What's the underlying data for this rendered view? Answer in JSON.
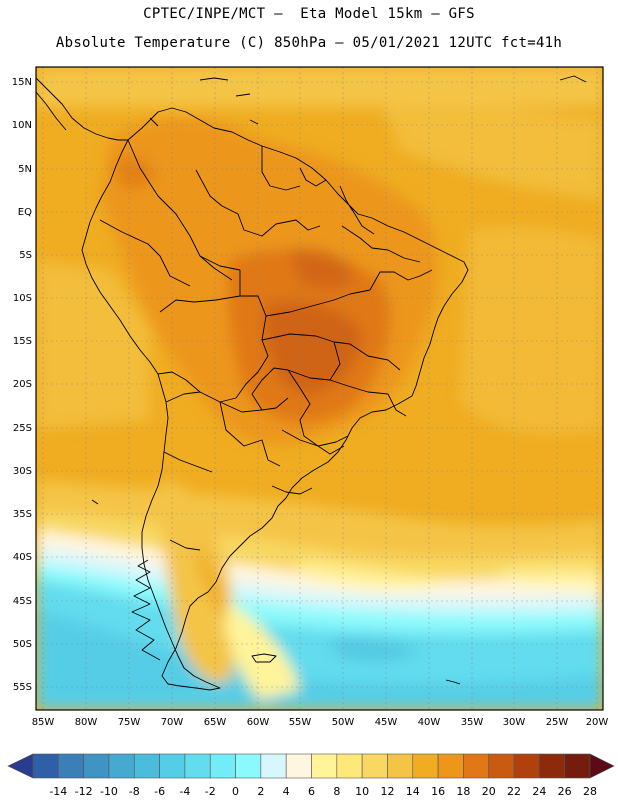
{
  "header": {
    "line1": "CPTEC/INPE/MCT –  Eta Model 15km – GFS",
    "line2": "Absolute Temperature (C) 850hPa – 05/01/2021 12UTC fct=41h"
  },
  "map": {
    "region": "South America",
    "lat_labels": [
      "15N",
      "10N",
      "5N",
      "EQ",
      "5S",
      "10S",
      "15S",
      "20S",
      "25S",
      "30S",
      "35S",
      "40S",
      "45S",
      "50S",
      "55S"
    ],
    "lon_labels": [
      "85W",
      "80W",
      "75W",
      "70W",
      "65W",
      "60W",
      "55W",
      "50W",
      "45W",
      "40W",
      "35W",
      "30W",
      "25W",
      "20W"
    ]
  },
  "colorbar": {
    "labels": [
      "-14",
      "-12",
      "-10",
      "-8",
      "-6",
      "-4",
      "-2",
      "0",
      "2",
      "4",
      "6",
      "8",
      "10",
      "12",
      "14",
      "16",
      "18",
      "20",
      "22",
      "24",
      "26",
      "28"
    ],
    "colors": [
      "#2a3c8e",
      "#2f5fa6",
      "#3a7fb8",
      "#3f94c4",
      "#45a9d0",
      "#4cbcdc",
      "#56cde6",
      "#62dcee",
      "#72ecf6",
      "#8cfafc",
      "#d6f8fc",
      "#fff6e0",
      "#fff49a",
      "#fee87a",
      "#f8d862",
      "#f4c447",
      "#f0ad22",
      "#ec961a",
      "#e07818",
      "#c85a12",
      "#b0410e",
      "#8c2a0c",
      "#741c0e",
      "#5c0a16"
    ]
  }
}
